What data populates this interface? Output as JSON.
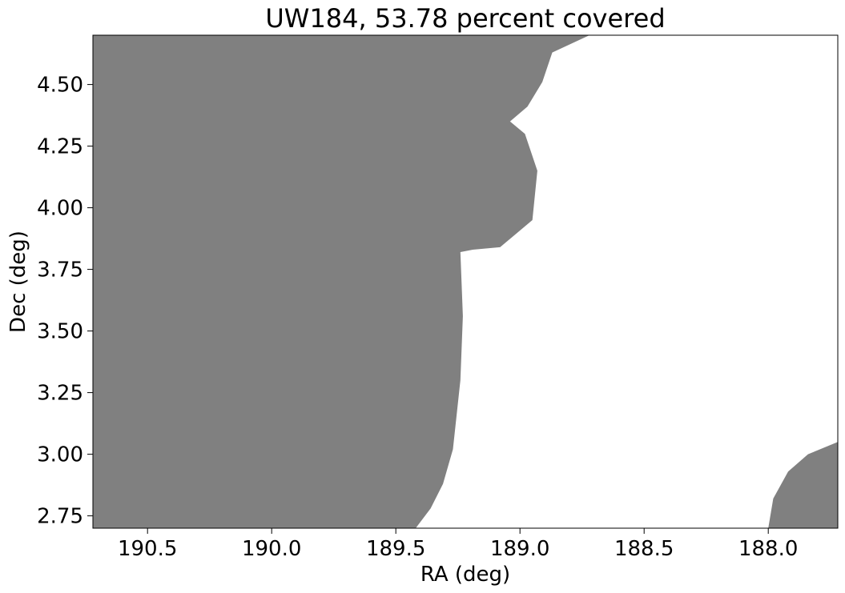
{
  "chart_data": {
    "type": "area",
    "title": "UW184, 53.78 percent covered",
    "xlabel": "RA (deg)",
    "ylabel": "Dec (deg)",
    "x_inverted": true,
    "xlim": [
      190.72,
      187.72
    ],
    "ylim": [
      2.7,
      4.7
    ],
    "xticks": [
      190.5,
      190.0,
      189.5,
      189.0,
      188.5,
      188.0
    ],
    "xtick_labels": [
      "190.5",
      "190.0",
      "189.5",
      "189.0",
      "188.5",
      "188.0"
    ],
    "yticks": [
      2.75,
      3.0,
      3.25,
      3.5,
      3.75,
      4.0,
      4.25,
      4.5
    ],
    "ytick_labels": [
      "2.75",
      "3.00",
      "3.25",
      "3.50",
      "3.75",
      "4.00",
      "4.25",
      "4.50"
    ],
    "grid": false,
    "fill_color": "#808080",
    "regions": [
      {
        "name": "covered-main",
        "boundary": [
          [
            190.72,
            2.7
          ],
          [
            189.42,
            2.7
          ],
          [
            189.36,
            2.78
          ],
          [
            189.31,
            2.88
          ],
          [
            189.27,
            3.02
          ],
          [
            189.24,
            3.3
          ],
          [
            189.23,
            3.56
          ],
          [
            189.24,
            3.82
          ],
          [
            189.19,
            3.83
          ],
          [
            189.08,
            3.84
          ],
          [
            188.95,
            3.95
          ],
          [
            188.93,
            4.15
          ],
          [
            188.98,
            4.3
          ],
          [
            189.04,
            4.35
          ],
          [
            188.97,
            4.41
          ],
          [
            188.91,
            4.51
          ],
          [
            188.87,
            4.63
          ],
          [
            188.72,
            4.7
          ],
          [
            190.72,
            4.7
          ]
        ]
      },
      {
        "name": "covered-corner",
        "boundary": [
          [
            188.0,
            2.7
          ],
          [
            187.98,
            2.82
          ],
          [
            187.92,
            2.93
          ],
          [
            187.84,
            3.0
          ],
          [
            187.72,
            3.05
          ],
          [
            187.72,
            2.7
          ]
        ]
      }
    ]
  }
}
